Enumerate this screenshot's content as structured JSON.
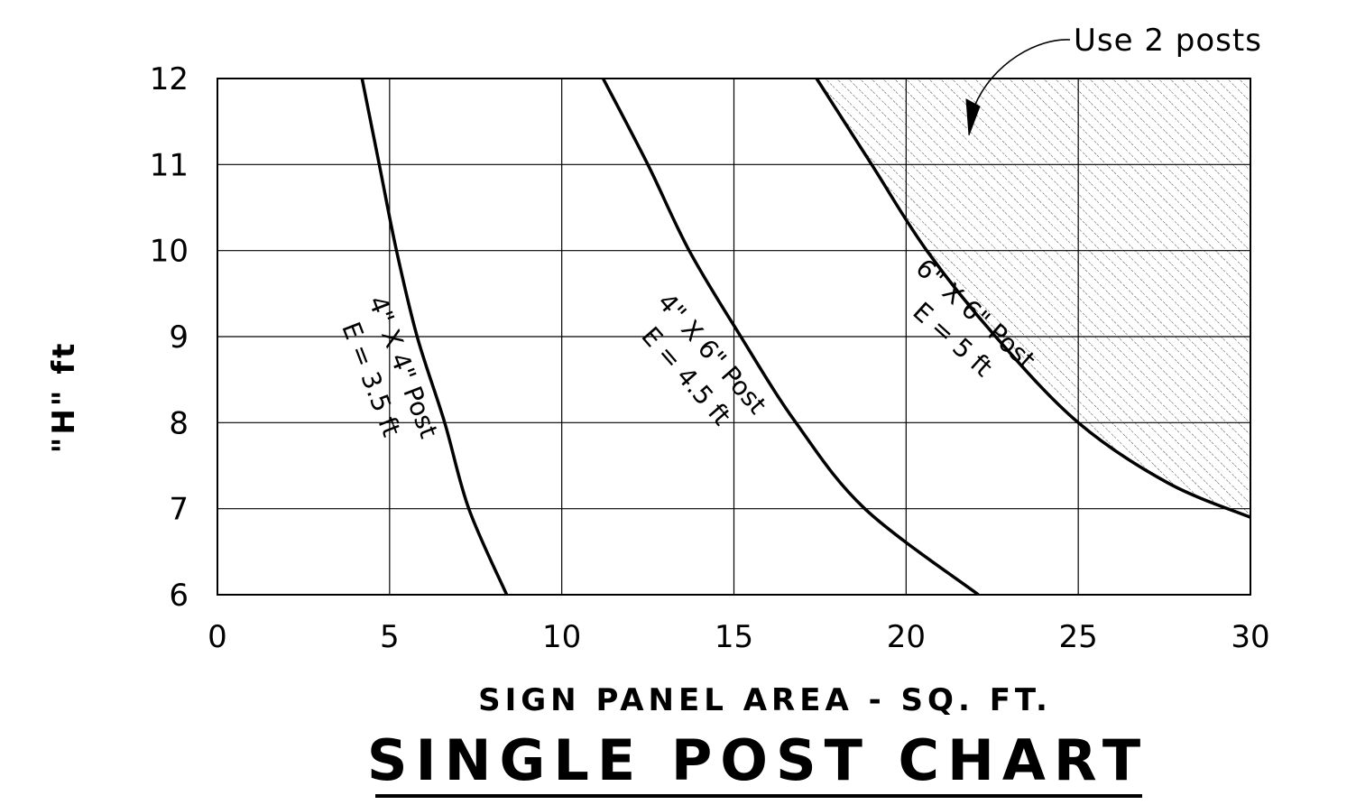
{
  "chart_data": {
    "type": "line",
    "title": "SINGLE POST CHART",
    "xlabel": "SIGN PANEL AREA - SQ. FT.",
    "ylabel": "\"H\" ft",
    "xlim": [
      0,
      30
    ],
    "ylim": [
      6,
      12
    ],
    "x_ticks": [
      0,
      5,
      10,
      15,
      20,
      25,
      30
    ],
    "y_ticks": [
      6,
      7,
      8,
      9,
      10,
      11,
      12
    ],
    "grid": true,
    "series": [
      {
        "name": "4\" X 4\" Post",
        "label_line2": "E = 3.5 ft",
        "points": [
          [
            4.2,
            12
          ],
          [
            4.7,
            11
          ],
          [
            5.2,
            10
          ],
          [
            5.8,
            9
          ],
          [
            6.6,
            8
          ],
          [
            7.3,
            7
          ],
          [
            8.4,
            6
          ]
        ]
      },
      {
        "name": "4\" X 6\" Post",
        "label_line2": "E = 4.5 ft",
        "points": [
          [
            11.2,
            12
          ],
          [
            12.5,
            11
          ],
          [
            13.7,
            10
          ],
          [
            15.2,
            9
          ],
          [
            16.8,
            8
          ],
          [
            18.8,
            7
          ],
          [
            22.1,
            6
          ]
        ]
      },
      {
        "name": "6\" X 6\" Post",
        "label_line2": "E = 5 ft",
        "points": [
          [
            17.4,
            12
          ],
          [
            19.0,
            11
          ],
          [
            20.6,
            10
          ],
          [
            22.6,
            9
          ],
          [
            25.0,
            8
          ],
          [
            27.6,
            7.3
          ],
          [
            30.0,
            6.9
          ]
        ]
      }
    ],
    "shaded_region": {
      "label": "Use 2 posts",
      "pattern": "diagonal-hatch",
      "bounded_by": "6\" X 6\" Post"
    }
  }
}
